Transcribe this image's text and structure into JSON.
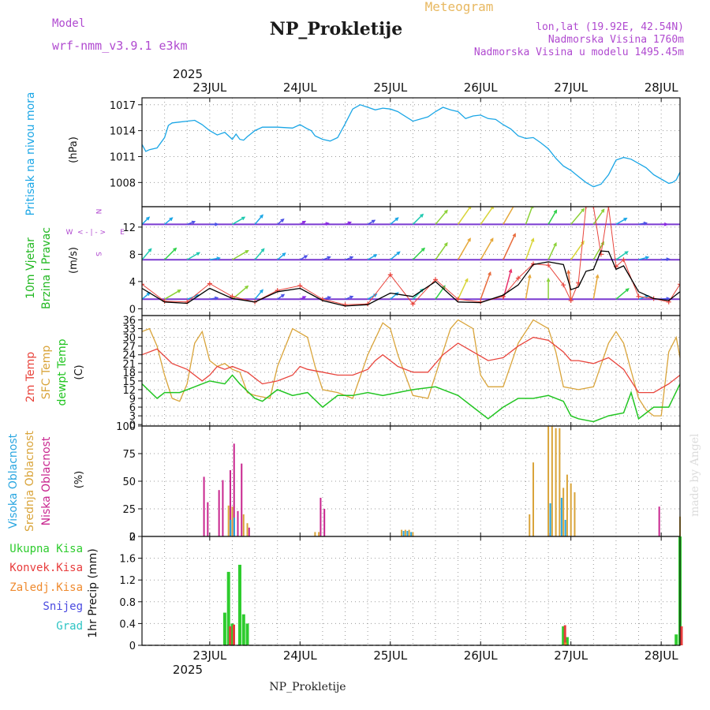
{
  "header": {
    "model_label": "Model",
    "model_name": "wrf-nmm_v3.9.1  e3km",
    "product": "Meteogram",
    "station": "NP_Prokletije",
    "coords": "lon,lat (19.92E, 42.54N)",
    "elevation": "Nadmorska Visina 1760m",
    "model_elevation": "Nadmorska Visina u modelu 1495.45m",
    "credit": "made by Angel",
    "footer": "NP_Prokletije"
  },
  "colors": {
    "pressure": "#1aa6e6",
    "temp2m": "#e8443c",
    "sfc_temp": "#d9a43a",
    "dewpoint": "#22c522",
    "high_cloud": "#2aa6e0",
    "mid_cloud": "#d9a43a",
    "low_cloud": "#c8258e",
    "total_precip": "#2ecc2e",
    "conv_precip": "#e83c3c",
    "frz_precip": "#ef8a2e",
    "snow": "#4a4ae0",
    "hail": "#2ec4c4",
    "wind_legend": "#b04ad0"
  },
  "chart_data": [
    {
      "type": "line",
      "title": "Pritisak na nivou mora",
      "ylabel": "(hPa)",
      "x_year": "2025",
      "x_ticks": [
        "23JUL",
        "24JUL",
        "25JUL",
        "26JUL",
        "27JUL",
        "28JUL"
      ],
      "xlim": [
        0,
        143
      ],
      "yticks": [
        1008,
        1011,
        1014,
        1017
      ],
      "ylim": [
        1005.2,
        1017.8
      ],
      "series": [
        {
          "name": "Pritisak",
          "color": "#1aa6e6",
          "x": [
            0,
            1,
            2,
            4,
            6,
            7,
            8,
            10,
            12,
            14,
            16,
            18,
            20,
            22,
            24,
            25,
            26,
            27,
            28,
            30,
            32,
            36,
            40,
            42,
            44,
            45,
            46,
            48,
            50,
            52,
            54,
            56,
            58,
            60,
            62,
            64,
            66,
            68,
            72,
            76,
            78,
            80,
            82,
            84,
            86,
            88,
            90,
            92,
            94,
            96,
            98,
            100,
            102,
            104,
            106,
            108,
            110,
            112,
            114,
            116,
            118,
            120,
            122,
            124,
            126,
            128,
            130,
            132,
            134,
            136,
            138,
            140,
            141,
            142,
            143
          ],
          "values": [
            1012.4,
            1011.6,
            1011.8,
            1012.0,
            1013.2,
            1014.6,
            1014.9,
            1015.0,
            1015.1,
            1015.2,
            1014.7,
            1014.0,
            1013.5,
            1013.8,
            1013.0,
            1013.6,
            1013.0,
            1012.9,
            1013.3,
            1014.0,
            1014.4,
            1014.4,
            1014.3,
            1014.7,
            1014.2,
            1014.0,
            1013.4,
            1013.0,
            1012.8,
            1013.2,
            1014.8,
            1016.5,
            1017.0,
            1016.7,
            1016.4,
            1016.6,
            1016.5,
            1016.2,
            1015.1,
            1015.6,
            1016.2,
            1016.7,
            1016.4,
            1016.2,
            1015.4,
            1015.7,
            1015.8,
            1015.4,
            1015.3,
            1014.7,
            1014.2,
            1013.4,
            1013.1,
            1013.2,
            1012.6,
            1011.9,
            1010.8,
            1009.9,
            1009.4,
            1008.7,
            1008.0,
            1007.5,
            1007.8,
            1008.9,
            1010.6,
            1010.9,
            1010.7,
            1010.2,
            1009.7,
            1008.9,
            1008.4,
            1007.9,
            1008.0,
            1008.3,
            1009.2
          ]
        }
      ]
    },
    {
      "type": "line",
      "title": "10m Vjetar Brzina i Pravac",
      "ylabel": "(m/s)",
      "wind_legend": [
        "N",
        "W",
        "E",
        "S"
      ],
      "yticks": [
        0,
        4,
        8,
        12
      ],
      "ylim": [
        -1,
        15
      ],
      "series": [
        {
          "name": "Brzina (model)",
          "color": "#000000",
          "x": [
            0,
            6,
            12,
            18,
            24,
            30,
            36,
            42,
            48,
            54,
            60,
            66,
            72,
            78,
            84,
            90,
            96,
            100,
            104,
            108,
            112,
            114,
            116,
            118,
            120,
            122,
            124,
            126,
            128,
            132,
            136,
            140,
            143
          ],
          "values": [
            3.0,
            1.0,
            0.8,
            3.0,
            1.5,
            1.0,
            2.5,
            3.0,
            1.2,
            0.4,
            0.6,
            2.3,
            1.8,
            4.0,
            1.0,
            0.9,
            2.0,
            3.5,
            6.5,
            6.9,
            6.5,
            2.8,
            3.2,
            5.5,
            5.8,
            8.5,
            8.4,
            5.8,
            6.3,
            2.5,
            1.5,
            1.2,
            2.5
          ]
        },
        {
          "name": "Brzina (+)",
          "color": "#e8443c",
          "x": [
            0,
            6,
            12,
            18,
            24,
            30,
            36,
            42,
            48,
            54,
            60,
            66,
            72,
            78,
            84,
            90,
            96,
            100,
            104,
            108,
            112,
            114,
            116,
            118,
            120,
            122,
            124,
            126,
            128,
            132,
            136,
            140,
            143
          ],
          "values": [
            3.6,
            1.1,
            1.0,
            3.7,
            1.8,
            1.0,
            2.7,
            3.4,
            1.4,
            0.6,
            0.7,
            5.0,
            0.7,
            4.3,
            1.4,
            1.0,
            1.8,
            4.5,
            6.6,
            6.4,
            3.5,
            1.2,
            3.8,
            15.0,
            15.0,
            8.0,
            15.0,
            6.2,
            7.2,
            1.8,
            1.5,
            1.0,
            3.6
          ]
        }
      ],
      "rows": [
        {
          "level": 12.4,
          "speeds": [
            3,
            3,
            2,
            2,
            5,
            4,
            2,
            1,
            1,
            1,
            2,
            3,
            5,
            7,
            9,
            9,
            11,
            8,
            6,
            8,
            7,
            4,
            2,
            1,
            2
          ],
          "dirs": [
            225,
            230,
            250,
            270,
            240,
            220,
            230,
            240,
            260,
            250,
            240,
            230,
            225,
            220,
            215,
            215,
            210,
            200,
            210,
            220,
            215,
            240,
            260,
            270,
            250
          ]
        },
        {
          "level": 7.2,
          "speeds": [
            5,
            6,
            5,
            3,
            7,
            5,
            3,
            2,
            2,
            2,
            3,
            4,
            6,
            8,
            10,
            10,
            12,
            9,
            7,
            9,
            8,
            5,
            3,
            2,
            3
          ],
          "dirs": [
            220,
            225,
            240,
            260,
            240,
            220,
            230,
            240,
            250,
            250,
            240,
            230,
            225,
            215,
            210,
            210,
            205,
            200,
            205,
            215,
            210,
            235,
            255,
            265,
            250
          ]
        },
        {
          "level": 1.4,
          "speeds": [
            3,
            7,
            4,
            2,
            8,
            4,
            2,
            1,
            2,
            2,
            3,
            3,
            5,
            6,
            9,
            12,
            13,
            10,
            8,
            12,
            10,
            6,
            3,
            2,
            3
          ],
          "dirs": [
            230,
            240,
            250,
            260,
            230,
            220,
            235,
            245,
            255,
            250,
            240,
            230,
            225,
            215,
            205,
            200,
            195,
            190,
            180,
            175,
            190,
            230,
            250,
            265,
            250
          ]
        }
      ]
    },
    {
      "type": "line",
      "title": "2m Temp / SFC Temp / dewpt Temp",
      "ylabel": "(C)",
      "yticks": [
        0,
        3,
        6,
        9,
        12,
        15,
        18,
        21,
        24,
        27,
        30,
        33,
        36
      ],
      "ylim": [
        -0.5,
        37.5
      ],
      "series": [
        {
          "name": "2m Temp",
          "color": "#e8443c",
          "x": [
            0,
            4,
            8,
            12,
            16,
            18,
            20,
            22,
            24,
            28,
            32,
            36,
            40,
            42,
            44,
            48,
            52,
            56,
            60,
            62,
            64,
            66,
            68,
            72,
            76,
            80,
            84,
            88,
            92,
            96,
            100,
            104,
            108,
            112,
            114,
            116,
            120,
            124,
            128,
            132,
            136,
            140,
            143
          ],
          "values": [
            24,
            26,
            21,
            19,
            15,
            17,
            20,
            19,
            20,
            18,
            14,
            15,
            17,
            20,
            19,
            18,
            17,
            17,
            19,
            22,
            24,
            22,
            20,
            18,
            18,
            24,
            28,
            25,
            22,
            23,
            27,
            30,
            29,
            25,
            22,
            22,
            21,
            23,
            19,
            11,
            11,
            14,
            17
          ]
        },
        {
          "name": "SFC Temp",
          "color": "#d9a43a",
          "x": [
            0,
            2,
            4,
            6,
            8,
            10,
            12,
            14,
            16,
            18,
            20,
            22,
            24,
            26,
            28,
            30,
            34,
            36,
            40,
            44,
            46,
            48,
            52,
            56,
            60,
            64,
            66,
            68,
            72,
            76,
            80,
            82,
            84,
            88,
            90,
            92,
            96,
            100,
            104,
            108,
            110,
            112,
            116,
            120,
            124,
            126,
            128,
            132,
            134,
            136,
            138,
            140,
            142,
            143
          ],
          "values": [
            32,
            33,
            27,
            17,
            9,
            8,
            14,
            28,
            32,
            22,
            20,
            21,
            19,
            18,
            11,
            10,
            9,
            20,
            33,
            30,
            20,
            12,
            11,
            9,
            24,
            35,
            33,
            24,
            10,
            9,
            25,
            33,
            36,
            33,
            17,
            13,
            13,
            28,
            36,
            33,
            25,
            13,
            12,
            13,
            28,
            32,
            28,
            9,
            5,
            3,
            3,
            25,
            30,
            23
          ]
        },
        {
          "name": "dewpt Temp",
          "color": "#22c522",
          "x": [
            0,
            4,
            6,
            10,
            14,
            18,
            22,
            24,
            26,
            30,
            32,
            36,
            40,
            44,
            48,
            52,
            56,
            60,
            64,
            68,
            72,
            78,
            80,
            84,
            88,
            92,
            96,
            100,
            104,
            108,
            112,
            114,
            116,
            120,
            124,
            128,
            130,
            132,
            136,
            140,
            143
          ],
          "values": [
            14,
            9,
            11,
            11,
            13,
            15,
            14,
            17,
            14,
            9,
            8,
            12,
            10,
            11,
            6,
            10,
            10,
            11,
            10,
            11,
            12,
            13,
            12,
            10,
            6,
            2,
            6,
            9,
            9,
            10,
            8,
            3,
            2,
            1,
            3,
            4,
            11,
            2,
            6,
            6,
            14
          ]
        }
      ]
    },
    {
      "type": "bar",
      "title": "Visoka / Srednja / Niska Oblacnost",
      "ylabel": "(%)",
      "yticks": [
        0,
        25,
        50,
        75,
        100
      ],
      "ylim": [
        0,
        100
      ],
      "series": [
        {
          "name": "Niska Oblacnost",
          "color": "#c8258e",
          "x": [
            17,
            18,
            21,
            22,
            24,
            25,
            26,
            27,
            29,
            48,
            49,
            109,
            138
          ],
          "values": [
            54,
            31,
            42,
            51,
            60,
            84,
            23,
            66,
            8,
            35,
            25,
            3,
            27
          ]
        },
        {
          "name": "Srednja Oblacnost",
          "color": "#d9a43a",
          "x": [
            23,
            24,
            27,
            28,
            46,
            47,
            69,
            70,
            71,
            72,
            103,
            104,
            108,
            109,
            110,
            111,
            112,
            113,
            114,
            115,
            143
          ],
          "values": [
            28,
            27,
            20,
            12,
            4,
            4,
            6,
            6,
            6,
            4,
            20,
            67,
            100,
            100,
            98,
            98,
            44,
            56,
            48,
            40,
            18
          ]
        },
        {
          "name": "Visoka Oblacnost",
          "color": "#2aa6e0",
          "x": [
            23,
            24,
            69,
            70,
            71,
            108,
            111,
            112
          ],
          "values": [
            15,
            17,
            5,
            5,
            4,
            30,
            35,
            15
          ]
        }
      ]
    },
    {
      "type": "bar",
      "title": "1hr Precip",
      "ylabel": "(mm)",
      "yticks": [
        0,
        0.4,
        0.8,
        1.2,
        1.6,
        2
      ],
      "ylim": [
        0,
        2
      ],
      "legend": [
        "Ukupna  Kisa",
        "Konvek.Kisa",
        "Zaledj.Kisa",
        "Snijeg",
        "Grad"
      ],
      "series": [
        {
          "name": "Ukupna Kisa",
          "color": "#2ecc2e",
          "x": [
            22,
            23,
            24,
            26,
            27,
            28,
            112,
            113,
            142,
            143
          ],
          "values": [
            0.6,
            1.35,
            0.4,
            1.48,
            0.57,
            0.4,
            0.35,
            0.15,
            0.2,
            2.0
          ]
        },
        {
          "name": "Konvek.Kisa",
          "color": "#e83c3c",
          "x": [
            23,
            24,
            112,
            143
          ],
          "values": [
            0.35,
            0.38,
            0.37,
            0.35
          ]
        },
        {
          "name": "Zaledj.Kisa",
          "color": "#ef8a2e",
          "x": [
            113
          ],
          "values": [
            0.05
          ]
        }
      ]
    }
  ]
}
